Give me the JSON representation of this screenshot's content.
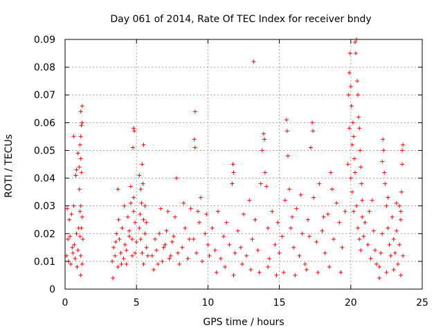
{
  "chart_data": {
    "type": "scatter",
    "title": "Day 061 of 2014, Rate Of TEC Index for receiver bndy",
    "xlabel": "GPS time / hours",
    "ylabel": "ROTI / TECUs",
    "xlim": [
      0,
      25
    ],
    "ylim": [
      0,
      0.09
    ],
    "xticks": [
      0,
      5,
      10,
      15,
      20,
      25
    ],
    "yticks": [
      0,
      0.01,
      0.02,
      0.03,
      0.04,
      0.05,
      0.06,
      0.07,
      0.08,
      0.09
    ],
    "grid": true,
    "marker": "+",
    "series_color": "#ff0000",
    "series": [
      {
        "name": "ROTI",
        "points": [
          [
            0.1,
            0.012
          ],
          [
            0.2,
            0.018
          ],
          [
            0.3,
            0.025
          ],
          [
            0.4,
            0.009
          ],
          [
            0.5,
            0.015
          ],
          [
            0.6,
            0.03
          ],
          [
            0.7,
            0.011
          ],
          [
            0.8,
            0.02
          ],
          [
            0.9,
            0.014
          ],
          [
            1.0,
            0.036
          ],
          [
            0.15,
            0.029
          ],
          [
            0.35,
            0.019
          ],
          [
            0.55,
            0.013
          ],
          [
            0.75,
            0.041
          ],
          [
            0.85,
            0.008
          ],
          [
            0.95,
            0.022
          ],
          [
            0.25,
            0.01
          ],
          [
            0.45,
            0.027
          ],
          [
            0.65,
            0.016
          ],
          [
            1.05,
            0.019
          ],
          [
            0.6,
            0.055
          ],
          [
            0.9,
            0.049
          ],
          [
            1.1,
            0.064
          ],
          [
            1.15,
            0.059
          ],
          [
            1.1,
            0.055
          ],
          [
            1.2,
            0.06
          ],
          [
            1.05,
            0.052
          ],
          [
            1.1,
            0.047
          ],
          [
            1.15,
            0.042
          ],
          [
            1.0,
            0.044
          ],
          [
            1.2,
            0.066
          ],
          [
            0.8,
            0.043
          ],
          [
            1.1,
            0.03
          ],
          [
            1.2,
            0.026
          ],
          [
            1.15,
            0.022
          ],
          [
            1.1,
            0.012
          ],
          [
            1.25,
            0.018
          ],
          [
            1.05,
            0.028
          ],
          [
            1.2,
            0.009
          ],
          [
            1.1,
            0.005
          ],
          [
            3.3,
            0.01
          ],
          [
            3.4,
            0.015
          ],
          [
            3.5,
            0.012
          ],
          [
            3.6,
            0.02
          ],
          [
            3.7,
            0.008
          ],
          [
            3.8,
            0.018
          ],
          [
            3.9,
            0.013
          ],
          [
            4.0,
            0.022
          ],
          [
            4.1,
            0.011
          ],
          [
            4.2,
            0.016
          ],
          [
            3.35,
            0.004
          ],
          [
            3.55,
            0.017
          ],
          [
            3.75,
            0.025
          ],
          [
            3.95,
            0.009
          ],
          [
            4.15,
            0.03
          ],
          [
            4.3,
            0.014
          ],
          [
            4.5,
            0.019
          ],
          [
            4.7,
            0.012
          ],
          [
            4.9,
            0.024
          ],
          [
            5.0,
            0.017
          ],
          [
            3.7,
            0.036
          ],
          [
            4.4,
            0.026
          ],
          [
            4.6,
            0.031
          ],
          [
            4.8,
            0.028
          ],
          [
            4.5,
            0.021
          ],
          [
            4.7,
            0.018
          ],
          [
            4.6,
            0.037
          ],
          [
            4.8,
            0.033
          ],
          [
            4.3,
            0.009
          ],
          [
            4.9,
            0.013
          ],
          [
            4.75,
            0.051
          ],
          [
            4.8,
            0.058
          ],
          [
            4.85,
            0.057
          ],
          [
            5.2,
            0.041
          ],
          [
            5.3,
            0.036
          ],
          [
            5.4,
            0.045
          ],
          [
            5.5,
            0.052
          ],
          [
            5.45,
            0.038
          ],
          [
            5.35,
            0.031
          ],
          [
            5.25,
            0.027
          ],
          [
            5.2,
            0.022
          ],
          [
            5.3,
            0.018
          ],
          [
            5.5,
            0.025
          ],
          [
            5.6,
            0.02
          ],
          [
            5.7,
            0.015
          ],
          [
            5.8,
            0.012
          ],
          [
            5.6,
            0.03
          ],
          [
            5.4,
            0.013
          ],
          [
            5.5,
            0.009
          ],
          [
            5.7,
            0.024
          ],
          [
            6.1,
            0.012
          ],
          [
            6.3,
            0.018
          ],
          [
            6.5,
            0.009
          ],
          [
            6.7,
            0.029
          ],
          [
            6.9,
            0.015
          ],
          [
            7.1,
            0.021
          ],
          [
            7.3,
            0.011
          ],
          [
            7.5,
            0.017
          ],
          [
            7.7,
            0.026
          ],
          [
            7.9,
            0.013
          ],
          [
            6.2,
            0.007
          ],
          [
            6.4,
            0.014
          ],
          [
            6.6,
            0.02
          ],
          [
            6.8,
            0.01
          ],
          [
            7.0,
            0.016
          ],
          [
            7.2,
            0.028
          ],
          [
            7.4,
            0.012
          ],
          [
            7.6,
            0.019
          ],
          [
            7.8,
            0.04
          ],
          [
            8.0,
            0.009
          ],
          [
            8.2,
            0.015
          ],
          [
            8.4,
            0.022
          ],
          [
            8.6,
            0.011
          ],
          [
            8.8,
            0.029
          ],
          [
            9.0,
            0.018
          ],
          [
            9.2,
            0.013
          ],
          [
            9.4,
            0.024
          ],
          [
            9.6,
            0.01
          ],
          [
            9.8,
            0.02
          ],
          [
            10.0,
            0.016
          ],
          [
            8.3,
            0.031
          ],
          [
            8.7,
            0.018
          ],
          [
            9.1,
            0.064
          ],
          [
            9.05,
            0.054
          ],
          [
            9.1,
            0.051
          ],
          [
            9.3,
            0.028
          ],
          [
            9.5,
            0.033
          ],
          [
            9.9,
            0.027
          ],
          [
            10.1,
            0.012
          ],
          [
            10.3,
            0.022
          ],
          [
            10.5,
            0.014
          ],
          [
            10.7,
            0.028
          ],
          [
            10.9,
            0.011
          ],
          [
            11.1,
            0.019
          ],
          [
            11.3,
            0.024
          ],
          [
            11.5,
            0.016
          ],
          [
            11.7,
            0.038
          ],
          [
            11.75,
            0.045
          ],
          [
            11.8,
            0.042
          ],
          [
            11.9,
            0.013
          ],
          [
            12.1,
            0.021
          ],
          [
            12.3,
            0.015
          ],
          [
            12.5,
            0.027
          ],
          [
            12.7,
            0.012
          ],
          [
            12.9,
            0.032
          ],
          [
            13.1,
            0.018
          ],
          [
            13.2,
            0.082
          ],
          [
            13.3,
            0.025
          ],
          [
            13.5,
            0.014
          ],
          [
            13.7,
            0.038
          ],
          [
            13.8,
            0.05
          ],
          [
            13.9,
            0.056
          ],
          [
            13.95,
            0.054
          ],
          [
            14.0,
            0.042
          ],
          [
            14.1,
            0.037
          ],
          [
            14.2,
            0.022
          ],
          [
            14.3,
            0.011
          ],
          [
            14.5,
            0.028
          ],
          [
            14.7,
            0.016
          ],
          [
            14.9,
            0.024
          ],
          [
            10.6,
            0.006
          ],
          [
            11.2,
            0.008
          ],
          [
            11.8,
            0.005
          ],
          [
            12.4,
            0.009
          ],
          [
            13.0,
            0.007
          ],
          [
            13.6,
            0.006
          ],
          [
            14.2,
            0.008
          ],
          [
            14.8,
            0.005
          ],
          [
            15.0,
            0.013
          ],
          [
            15.2,
            0.019
          ],
          [
            15.4,
            0.032
          ],
          [
            15.5,
            0.061
          ],
          [
            15.55,
            0.057
          ],
          [
            15.6,
            0.048
          ],
          [
            15.7,
            0.036
          ],
          [
            15.8,
            0.022
          ],
          [
            16.0,
            0.015
          ],
          [
            16.2,
            0.029
          ],
          [
            16.4,
            0.012
          ],
          [
            16.6,
            0.02
          ],
          [
            16.8,
            0.009
          ],
          [
            17.0,
            0.025
          ],
          [
            17.2,
            0.051
          ],
          [
            17.3,
            0.06
          ],
          [
            17.35,
            0.057
          ],
          [
            17.4,
            0.033
          ],
          [
            17.6,
            0.017
          ],
          [
            17.8,
            0.038
          ],
          [
            18.0,
            0.021
          ],
          [
            18.2,
            0.013
          ],
          [
            18.4,
            0.027
          ],
          [
            18.6,
            0.042
          ],
          [
            18.7,
            0.036
          ],
          [
            18.8,
            0.018
          ],
          [
            19.0,
            0.031
          ],
          [
            19.2,
            0.024
          ],
          [
            19.4,
            0.015
          ],
          [
            19.6,
            0.028
          ],
          [
            19.8,
            0.045
          ],
          [
            19.9,
            0.058
          ],
          [
            15.3,
            0.006
          ],
          [
            16.1,
            0.005
          ],
          [
            16.9,
            0.007
          ],
          [
            17.7,
            0.006
          ],
          [
            18.5,
            0.008
          ],
          [
            19.3,
            0.006
          ],
          [
            15.9,
            0.026
          ],
          [
            16.5,
            0.034
          ],
          [
            17.1,
            0.019
          ],
          [
            18.1,
            0.026
          ],
          [
            19.85,
            0.07
          ],
          [
            19.9,
            0.078
          ],
          [
            19.95,
            0.085
          ],
          [
            20.0,
            0.073
          ],
          [
            20.05,
            0.066
          ],
          [
            20.1,
            0.052
          ],
          [
            20.15,
            0.06
          ],
          [
            20.2,
            0.055
          ],
          [
            20.25,
            0.047
          ],
          [
            20.3,
            0.089
          ],
          [
            20.35,
            0.085
          ],
          [
            20.4,
            0.09
          ],
          [
            20.45,
            0.075
          ],
          [
            20.5,
            0.07
          ],
          [
            20.55,
            0.062
          ],
          [
            20.6,
            0.058
          ],
          [
            20.65,
            0.05
          ],
          [
            20.7,
            0.044
          ],
          [
            20.75,
            0.038
          ],
          [
            20.8,
            0.032
          ],
          [
            20.0,
            0.04
          ],
          [
            20.1,
            0.035
          ],
          [
            20.2,
            0.028
          ],
          [
            20.3,
            0.042
          ],
          [
            20.4,
            0.03
          ],
          [
            20.5,
            0.022
          ],
          [
            20.6,
            0.018
          ],
          [
            20.7,
            0.014
          ],
          [
            20.8,
            0.026
          ],
          [
            20.9,
            0.019
          ],
          [
            21.0,
            0.024
          ],
          [
            21.2,
            0.016
          ],
          [
            21.4,
            0.011
          ],
          [
            21.5,
            0.032
          ],
          [
            21.6,
            0.021
          ],
          [
            21.8,
            0.009
          ],
          [
            22.0,
            0.004
          ],
          [
            22.1,
            0.013
          ],
          [
            22.2,
            0.046
          ],
          [
            22.25,
            0.054
          ],
          [
            22.3,
            0.05
          ],
          [
            22.35,
            0.042
          ],
          [
            22.4,
            0.038
          ],
          [
            22.5,
            0.03
          ],
          [
            22.6,
            0.022
          ],
          [
            22.7,
            0.016
          ],
          [
            22.8,
            0.012
          ],
          [
            22.9,
            0.026
          ],
          [
            23.0,
            0.018
          ],
          [
            23.1,
            0.013
          ],
          [
            23.2,
            0.021
          ],
          [
            23.3,
            0.009
          ],
          [
            23.4,
            0.016
          ],
          [
            23.5,
            0.025
          ],
          [
            23.6,
            0.05
          ],
          [
            23.65,
            0.052
          ],
          [
            23.6,
            0.045
          ],
          [
            23.55,
            0.035
          ],
          [
            23.5,
            0.028
          ],
          [
            23.65,
            0.012
          ],
          [
            22.0,
            0.008
          ],
          [
            22.5,
            0.006
          ],
          [
            23.0,
            0.007
          ],
          [
            23.5,
            0.005
          ],
          [
            21.3,
            0.028
          ],
          [
            21.7,
            0.014
          ],
          [
            22.2,
            0.02
          ],
          [
            22.6,
            0.033
          ],
          [
            23.2,
            0.031
          ],
          [
            23.4,
            0.03
          ]
        ]
      }
    ]
  }
}
